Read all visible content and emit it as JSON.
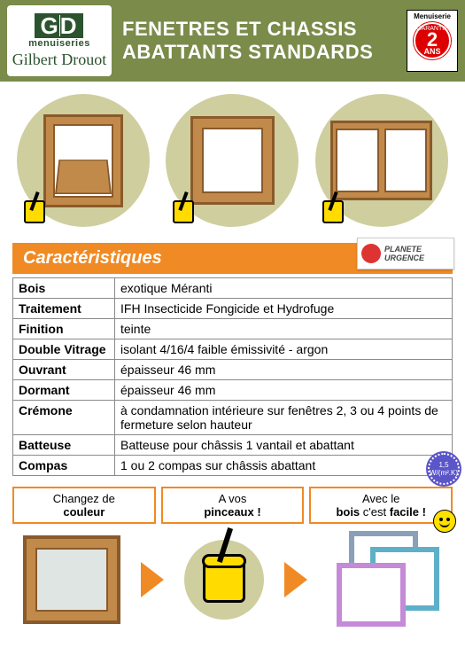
{
  "header": {
    "logo_letters": "GD",
    "logo_sub": "menuiseries",
    "logo_name": "Gilbert Drouot",
    "title_line1": "FENETRES ET CHASSIS",
    "title_line2": "ABATTANTS STANDARDS",
    "badge_top": "Menuiserie",
    "badge_guarantee": "GARANTIE",
    "badge_years": "2",
    "badge_unit": "ANS"
  },
  "section_title": "Caractéristiques",
  "planete_label": "PLANETE URGENCE",
  "specs": [
    {
      "k": "Bois",
      "v": "exotique Méranti"
    },
    {
      "k": "Traitement",
      "v": "IFH Insecticide Fongicide et Hydrofuge"
    },
    {
      "k": "Finition",
      "v": "teinte"
    },
    {
      "k": "Double Vitrage",
      "v": "isolant 4/16/4 faible émissivité - argon"
    },
    {
      "k": "Ouvrant",
      "v": "épaisseur 46 mm"
    },
    {
      "k": "Dormant",
      "v": "épaisseur 46 mm"
    },
    {
      "k": "Crémone",
      "v": "à condamnation intérieure sur fenêtres 2, 3 ou 4 points de fermeture selon hauteur"
    },
    {
      "k": "Batteuse",
      "v": "Batteuse pour châssis 1 vantail et abattant"
    },
    {
      "k": "Compas",
      "v": "1 ou 2 compas sur châssis abattant"
    }
  ],
  "note_badge": "1,5 W/(m².K)",
  "bottom": {
    "c1a": "Changez de",
    "c1b": "couleur",
    "c2a": "A vos",
    "c2b": "pinceaux !",
    "c3a": "Avec le",
    "c3b": "bois",
    "c3c": " c'est ",
    "c3d": "facile !"
  },
  "colors": {
    "header_bg": "#7a8b4a",
    "accent": "#f08a24",
    "circle_bg": "#cfce9f",
    "wood": "#c28a4a",
    "wood_dark": "#8a5a2a",
    "badge_red": "#d00"
  }
}
